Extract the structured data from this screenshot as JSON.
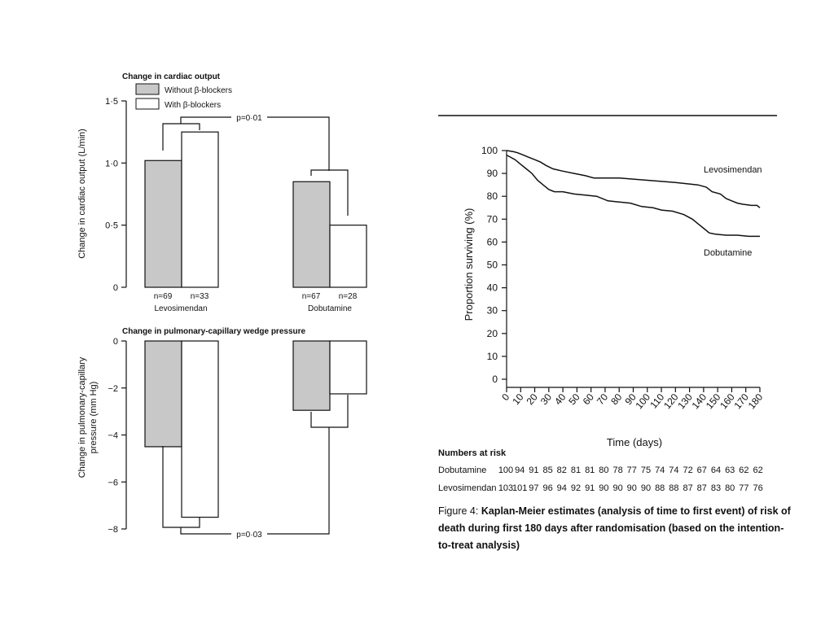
{
  "chart_data": [
    {
      "type": "bar",
      "title": "Change in cardiac output",
      "ylabel": "Change in cardiac output (L/min)",
      "ylim": [
        0,
        1.5
      ],
      "yticks": [
        "0",
        "0·5",
        "1·0",
        "1·5"
      ],
      "categories": [
        "Levosimendan",
        "Dobutamine"
      ],
      "series": [
        {
          "name": "Without β-blockers",
          "values": [
            1.02,
            0.85
          ],
          "n": [
            "n=69",
            "n=67"
          ],
          "color": "#c8c8c8"
        },
        {
          "name": "With β-blockers",
          "values": [
            1.25,
            0.5
          ],
          "n": [
            "n=33",
            "n=28"
          ],
          "color": "#ffffff"
        }
      ],
      "annotation": "p=0·01",
      "legend": "top-left"
    },
    {
      "type": "bar",
      "title": "Change in pulmonary-capillary wedge pressure",
      "ylabel": "Change in pulmonary-capillary pressure (mm Hg)",
      "ylabel_lines": [
        "Change in pulmonary-capillary",
        "pressure (mm Hg)"
      ],
      "ylim": [
        -8,
        0
      ],
      "yticks": [
        "0",
        "−2",
        "−4",
        "−6",
        "−8"
      ],
      "categories": [
        "Levosimendan",
        "Dobutamine"
      ],
      "series": [
        {
          "name": "Without β-blockers",
          "values": [
            -4.5,
            -2.95
          ],
          "color": "#c8c8c8"
        },
        {
          "name": "With β-blockers",
          "values": [
            -7.5,
            -2.25
          ],
          "color": "#ffffff"
        }
      ],
      "annotation": "p=0·03"
    },
    {
      "type": "line",
      "ylabel": "Proportion surviving (%)",
      "xlabel": "Time (days)",
      "xlim": [
        0,
        180
      ],
      "ylim": [
        0,
        100
      ],
      "xticks": [
        "0",
        "10",
        "20",
        "30",
        "40",
        "50",
        "60",
        "70",
        "80",
        "90",
        "100",
        "110",
        "120",
        "130",
        "140",
        "150",
        "160",
        "170",
        "180"
      ],
      "yticks": [
        "0",
        "10",
        "20",
        "30",
        "40",
        "50",
        "60",
        "70",
        "80",
        "90",
        "100"
      ],
      "series": [
        {
          "name": "Levosimendan",
          "points": [
            [
              0,
              100
            ],
            [
              5,
              99.5
            ],
            [
              8,
              99
            ],
            [
              12,
              98
            ],
            [
              16,
              97
            ],
            [
              20,
              96
            ],
            [
              24,
              95
            ],
            [
              28,
              93.5
            ],
            [
              33,
              92
            ],
            [
              40,
              91
            ],
            [
              48,
              90
            ],
            [
              56,
              89
            ],
            [
              62,
              88
            ],
            [
              70,
              88
            ],
            [
              80,
              88
            ],
            [
              90,
              87.5
            ],
            [
              100,
              87
            ],
            [
              110,
              86.5
            ],
            [
              120,
              86
            ],
            [
              128,
              85.5
            ],
            [
              136,
              85
            ],
            [
              142,
              84
            ],
            [
              146,
              82
            ],
            [
              152,
              81
            ],
            [
              156,
              79
            ],
            [
              160,
              78
            ],
            [
              164,
              77
            ],
            [
              168,
              76.5
            ],
            [
              174,
              76
            ],
            [
              178,
              76
            ],
            [
              180,
              75
            ]
          ]
        },
        {
          "name": "Dobutamine",
          "points": [
            [
              0,
              98
            ],
            [
              3,
              97
            ],
            [
              6,
              96
            ],
            [
              10,
              94
            ],
            [
              14,
              92
            ],
            [
              18,
              90
            ],
            [
              22,
              87
            ],
            [
              26,
              85
            ],
            [
              30,
              83
            ],
            [
              34,
              82
            ],
            [
              40,
              82
            ],
            [
              48,
              81
            ],
            [
              56,
              80.5
            ],
            [
              64,
              80
            ],
            [
              72,
              78
            ],
            [
              80,
              77.5
            ],
            [
              88,
              77
            ],
            [
              96,
              75.5
            ],
            [
              104,
              75
            ],
            [
              110,
              74
            ],
            [
              118,
              73.5
            ],
            [
              126,
              72
            ],
            [
              132,
              70
            ],
            [
              136,
              68
            ],
            [
              140,
              66
            ],
            [
              144,
              64
            ],
            [
              148,
              63.5
            ],
            [
              156,
              63
            ],
            [
              164,
              63
            ],
            [
              172,
              62.5
            ],
            [
              180,
              62.5
            ]
          ]
        }
      ],
      "table": {
        "title": "Numbers at risk",
        "rows": [
          {
            "label": "Dobutamine",
            "values": [
              "100",
              "94",
              "91",
              "85",
              "82",
              "81",
              "81",
              "80",
              "78",
              "77",
              "75",
              "74",
              "74",
              "72",
              "67",
              "64",
              "63",
              "62",
              "62"
            ]
          },
          {
            "label": "Levosimendan",
            "values": [
              "103",
              "101",
              "97",
              "96",
              "94",
              "92",
              "91",
              "90",
              "90",
              "90",
              "90",
              "88",
              "88",
              "87",
              "87",
              "83",
              "80",
              "77",
              "76"
            ]
          }
        ]
      }
    }
  ],
  "caption": {
    "lead": "Figure 4:",
    "text": "Kaplan-Meier estimates (analysis of time to first event) of risk of death during first 180 days after randomisation (based on the intention-to-treat analysis)"
  }
}
